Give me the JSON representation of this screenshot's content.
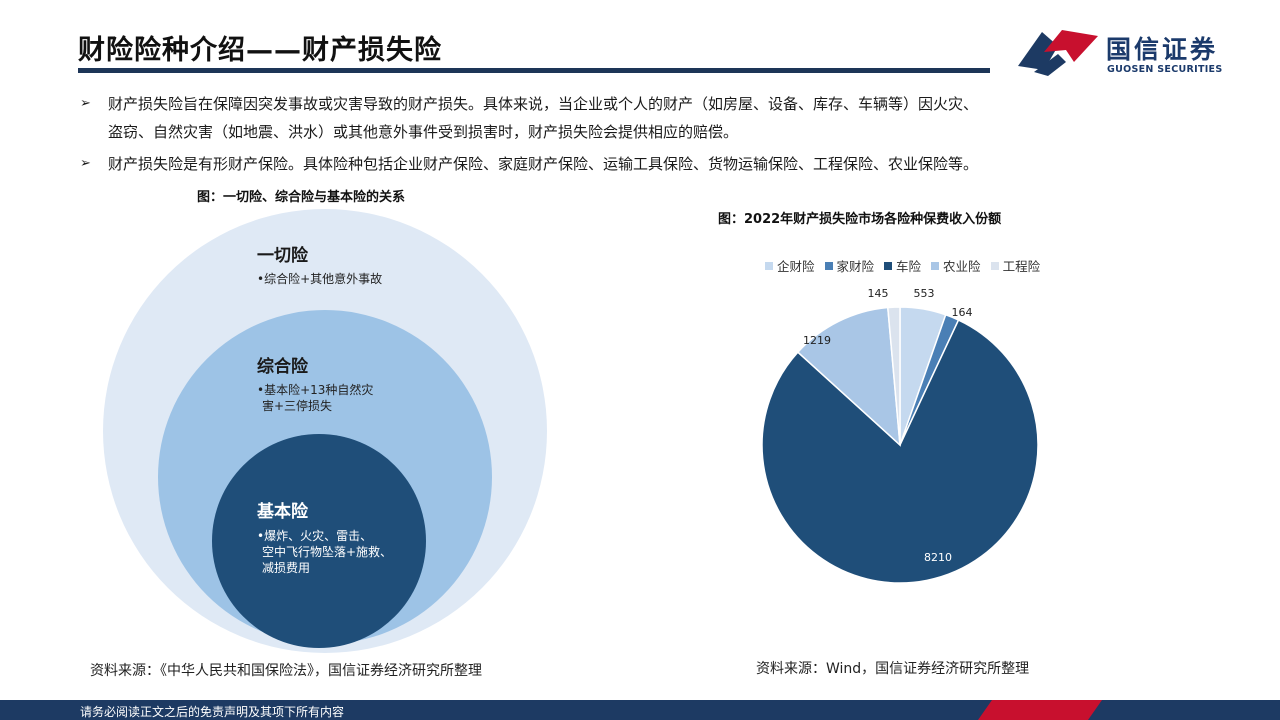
{
  "header": {
    "title": "财险险种介绍——财产损失险",
    "logo_cn": "国信证券",
    "logo_en": "GUOSEN SECURITIES"
  },
  "bullets": [
    {
      "arrow": "➢",
      "line1": "财产损失险旨在保障因突发事故或灾害导致的财产损失。具体来说，当企业或个人的财产（如房屋、设备、库存、车辆等）因火灾、",
      "line2": "盗窃、自然灾害（如地震、洪水）或其他意外事件受到损害时，财产损失险会提供相应的赔偿。"
    },
    {
      "arrow": "➢",
      "line1": "财产损失险是有形财产保险。具体险种包括企业财产保险、家庭财产保险、运输工具保险、货物运输保险、工程保险、农业保险等。"
    }
  ],
  "left_figure": {
    "caption": "图：一切险、综合险与基本险的关系",
    "outer": {
      "title": "一切险",
      "desc1": "•综合险+其他意外事故"
    },
    "middle": {
      "title": "综合险",
      "desc1": "•基本险+13种自然灾",
      "desc2": "害+三停损失"
    },
    "inner": {
      "title": "基本险",
      "desc1": "•爆炸、火灾、雷击、",
      "desc2": "空中飞行物坠落+施救、",
      "desc3": "减损费用"
    },
    "source": "资料来源：《中华人民共和国保险法》，国信证券经济研究所整理"
  },
  "right_figure": {
    "caption": "图：2022年财产损失险市场各险种保费收入份额",
    "source": "资料来源：Wind，国信证券经济研究所整理"
  },
  "chart_data": {
    "type": "pie",
    "title": "图：2022年财产损失险市场各险种保费收入份额",
    "categories": [
      "企财险",
      "家财险",
      "车险",
      "农业险",
      "工程险"
    ],
    "values": [
      553,
      164,
      8210,
      1219,
      145
    ],
    "colors": [
      "#c5d9ef",
      "#4a7fb5",
      "#1f4e79",
      "#a9c6e6",
      "#dbe3ee"
    ],
    "legend_position": "top"
  },
  "footer": {
    "disclaimer": "请务必阅读正文之后的免责声明及其项下所有内容"
  }
}
